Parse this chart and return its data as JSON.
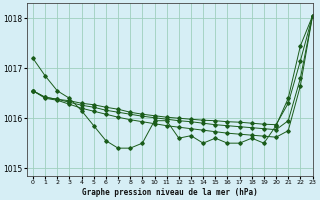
{
  "title": "Graphe pression niveau de la mer (hPa)",
  "background_color": "#d6eef5",
  "line_color": "#1a5c1a",
  "grid_color": "#9ecfbe",
  "xlim": [
    -0.5,
    23
  ],
  "ylim": [
    1014.85,
    1018.3
  ],
  "yticks": [
    1015,
    1016,
    1017,
    1018
  ],
  "xticks": [
    0,
    1,
    2,
    3,
    4,
    5,
    6,
    7,
    8,
    9,
    10,
    11,
    12,
    13,
    14,
    15,
    16,
    17,
    18,
    19,
    20,
    21,
    22,
    23
  ],
  "series": [
    [
      1017.2,
      1016.85,
      1016.55,
      1016.4,
      1016.15,
      1015.85,
      1015.55,
      1015.4,
      1015.4,
      1015.5,
      1015.95,
      1015.95,
      1015.6,
      1015.65,
      1015.5,
      1015.6,
      1015.5,
      1015.5,
      1015.6,
      1015.5,
      1015.85,
      1016.4,
      1017.45,
      1018.05
    ],
    [
      1016.55,
      1016.42,
      1016.38,
      1016.35,
      1016.3,
      1016.27,
      1016.22,
      1016.18,
      1016.12,
      1016.08,
      1016.05,
      1016.02,
      1016.0,
      1015.98,
      1015.96,
      1015.95,
      1015.93,
      1015.92,
      1015.9,
      1015.88,
      1015.87,
      1016.3,
      1017.15,
      1018.05
    ],
    [
      1016.55,
      1016.42,
      1016.38,
      1016.32,
      1016.26,
      1016.22,
      1016.16,
      1016.12,
      1016.08,
      1016.04,
      1016.01,
      1015.98,
      1015.95,
      1015.93,
      1015.9,
      1015.87,
      1015.85,
      1015.83,
      1015.81,
      1015.79,
      1015.77,
      1015.95,
      1016.8,
      1018.05
    ],
    [
      1016.55,
      1016.4,
      1016.36,
      1016.28,
      1016.2,
      1016.14,
      1016.08,
      1016.02,
      1015.97,
      1015.93,
      1015.89,
      1015.85,
      1015.82,
      1015.79,
      1015.76,
      1015.73,
      1015.7,
      1015.68,
      1015.66,
      1015.64,
      1015.62,
      1015.75,
      1016.65,
      1018.05
    ]
  ]
}
